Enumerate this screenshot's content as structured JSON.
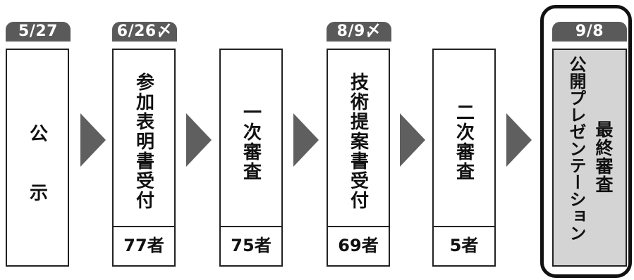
{
  "stages": [
    {
      "date": "5/27",
      "label": "公　　示"
    },
    {
      "date": "6/26〆",
      "label": "参加表明書受付",
      "count": "77者"
    },
    {
      "label": "一次審査",
      "count": "75者"
    },
    {
      "date": "8/9〆",
      "label": "技術提案書受付",
      "count": "69者"
    },
    {
      "label": "二次審査",
      "count": "5者"
    }
  ],
  "final": {
    "date": "9/8",
    "label_primary": "公開プレゼンテーション",
    "label_secondary": "最終審査"
  },
  "colors": {
    "date_pill": "#5a5a5a",
    "arrow": "#5f5f5f",
    "final_fill": "#d4d4d4",
    "border": "#222222"
  },
  "icons": {
    "arrow": "chevron-right-arrow-icon"
  }
}
